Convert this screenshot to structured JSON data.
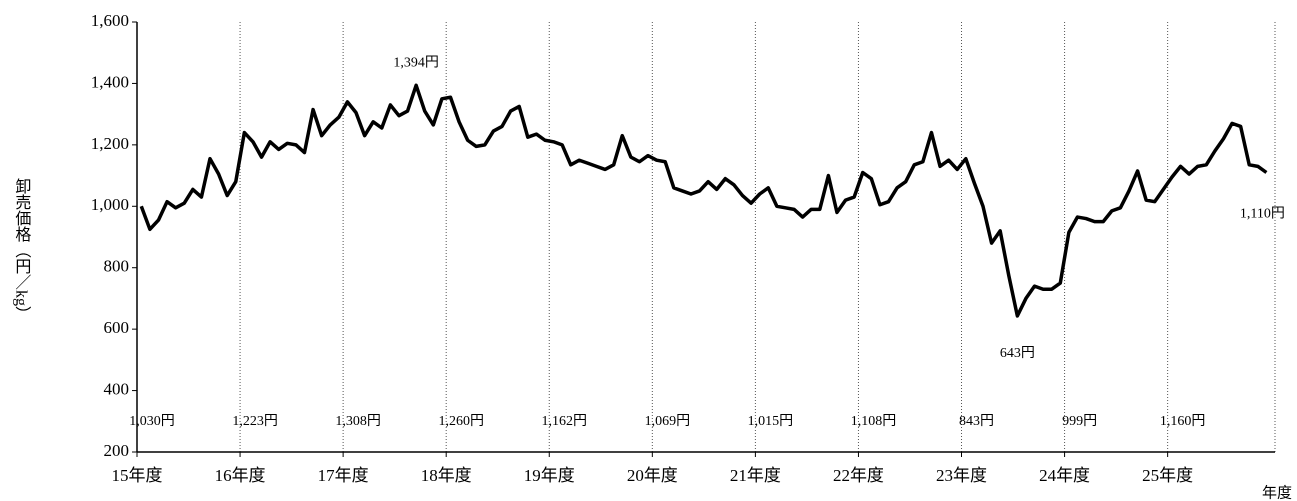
{
  "chart_data": {
    "type": "line",
    "y_label": "卸売価格（円／kg）",
    "x_label": "年度",
    "x": [
      0,
      1,
      2,
      3,
      4,
      5,
      6,
      7,
      8,
      9,
      10,
      11,
      12,
      13,
      14,
      15,
      16,
      17,
      18,
      19,
      20,
      21,
      22,
      23,
      24,
      25,
      26,
      27,
      28,
      29,
      30,
      31,
      32,
      33,
      34,
      35,
      36,
      37,
      38,
      39,
      40,
      41,
      42,
      43,
      44,
      45,
      46,
      47,
      48,
      49,
      50,
      51,
      52,
      53,
      54,
      55,
      56,
      57,
      58,
      59,
      60,
      61,
      62,
      63,
      64,
      65,
      66,
      67,
      68,
      69,
      70,
      71,
      72,
      73,
      74,
      75,
      76,
      77,
      78,
      79,
      80,
      81,
      82,
      83,
      84,
      85,
      86,
      87,
      88,
      89,
      90,
      91,
      92,
      93,
      94,
      95,
      96,
      97,
      98,
      99,
      100,
      101,
      102,
      103,
      104,
      105,
      106,
      107,
      108,
      109,
      110,
      111,
      112,
      113,
      114,
      115,
      116,
      117,
      118,
      119,
      120,
      121,
      122,
      123,
      124,
      125,
      126,
      127,
      128,
      129,
      130,
      131
    ],
    "series": [
      {
        "color": "#000000",
        "values": [
          1000,
          925,
          955,
          1015,
          995,
          1010,
          1055,
          1030,
          1155,
          1105,
          1035,
          1080,
          1240,
          1210,
          1160,
          1210,
          1185,
          1205,
          1200,
          1175,
          1315,
          1230,
          1265,
          1290,
          1340,
          1305,
          1230,
          1275,
          1255,
          1330,
          1295,
          1310,
          1394,
          1310,
          1265,
          1350,
          1355,
          1275,
          1215,
          1195,
          1200,
          1245,
          1260,
          1310,
          1325,
          1225,
          1235,
          1215,
          1210,
          1200,
          1135,
          1150,
          1140,
          1130,
          1120,
          1135,
          1230,
          1160,
          1145,
          1165,
          1150,
          1145,
          1060,
          1050,
          1040,
          1050,
          1080,
          1055,
          1090,
          1070,
          1035,
          1010,
          1040,
          1060,
          1000,
          995,
          990,
          965,
          990,
          990,
          1100,
          980,
          1020,
          1030,
          1110,
          1090,
          1005,
          1015,
          1060,
          1080,
          1135,
          1145,
          1240,
          1130,
          1150,
          1120,
          1155,
          1075,
          1000,
          880,
          920,
          775,
          643,
          700,
          740,
          730,
          730,
          750,
          915,
          965,
          960,
          950,
          950,
          985,
          995,
          1050,
          1115,
          1020,
          1015,
          1055,
          1095,
          1130,
          1105,
          1130,
          1135,
          1180,
          1220,
          1270,
          1260,
          1135,
          1130,
          1110
        ]
      }
    ],
    "annotations": [
      {
        "x": 32,
        "label": "1,394円"
      },
      {
        "x": 102,
        "label": "643円"
      },
      {
        "x": 131,
        "label": "1,110円"
      }
    ],
    "annual_labels": [
      "1,030円",
      "1,223円",
      "1,308円",
      "1,260円",
      "1,162円",
      "1,069円",
      "1,015円",
      "1,108円",
      "843円",
      "999円",
      "1,160円"
    ],
    "xlim": [
      -0.5,
      132
    ],
    "xticks": [
      {
        "value": -0.5,
        "label": "15年度"
      },
      {
        "value": 11.5,
        "label": "16年度"
      },
      {
        "value": 23.5,
        "label": "17年度"
      },
      {
        "value": 35.5,
        "label": "18年度"
      },
      {
        "value": 47.5,
        "label": "19年度"
      },
      {
        "value": 59.5,
        "label": "20年度"
      },
      {
        "value": 71.5,
        "label": "21年度"
      },
      {
        "value": 83.5,
        "label": "22年度"
      },
      {
        "value": 95.5,
        "label": "23年度"
      },
      {
        "value": 107.5,
        "label": "24年度"
      },
      {
        "value": 119.5,
        "label": "25年度"
      }
    ],
    "ylim": [
      200,
      1600
    ],
    "yticks": [
      200,
      400,
      600,
      800,
      {
        "value": 1000,
        "label": "1,000"
      },
      {
        "value": 1200,
        "label": "1,200"
      },
      {
        "value": 1400,
        "label": "1,400"
      },
      {
        "value": 1600,
        "label": "1,600"
      }
    ],
    "grid": true
  }
}
